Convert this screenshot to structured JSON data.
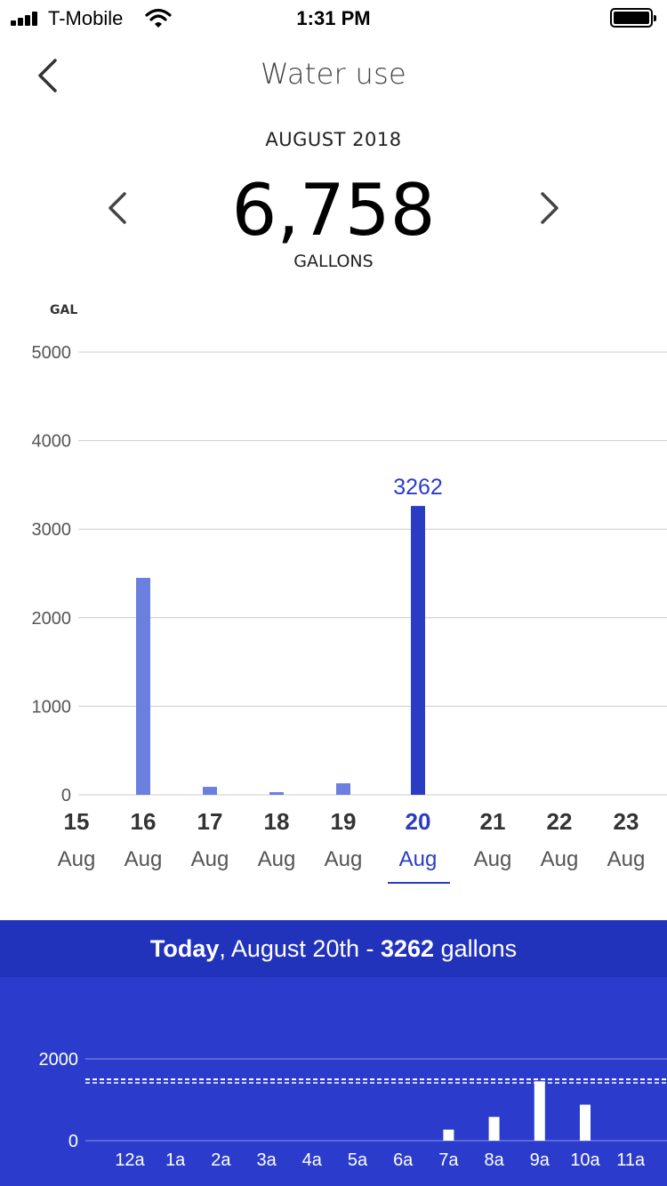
{
  "status_bar": {
    "carrier": "T-Mobile",
    "time": "1:31 PM"
  },
  "header": {
    "title": "Water use",
    "back_icon": "chevron-left-icon"
  },
  "summary": {
    "month": "AUGUST 2018",
    "total": "6,758",
    "unit": "GALLONS",
    "prev_icon": "chevron-left-icon",
    "next_icon": "chevron-right-icon"
  },
  "chart_data": [
    {
      "type": "bar",
      "ylabel": "GAL",
      "ylim": [
        0,
        5000
      ],
      "yticks": [
        "5000",
        "4000",
        "3000",
        "2000",
        "1000",
        "0"
      ],
      "categories": [
        {
          "day": "15",
          "month": "Aug"
        },
        {
          "day": "16",
          "month": "Aug"
        },
        {
          "day": "17",
          "month": "Aug"
        },
        {
          "day": "18",
          "month": "Aug"
        },
        {
          "day": "19",
          "month": "Aug"
        },
        {
          "day": "20",
          "month": "Aug"
        },
        {
          "day": "21",
          "month": "Aug"
        },
        {
          "day": "22",
          "month": "Aug"
        },
        {
          "day": "23",
          "month": "Aug"
        }
      ],
      "values": [
        0,
        2450,
        90,
        30,
        130,
        3262,
        0,
        0,
        0
      ],
      "selected_index": 5,
      "selected_label": "3262",
      "colors": {
        "bar": "#6b7fe0",
        "selected": "#2b3cc4",
        "grid": "#cccccc"
      }
    },
    {
      "type": "bar",
      "ylim": [
        0,
        2000
      ],
      "yticks": [
        "2000",
        "0"
      ],
      "categories": [
        "12a",
        "1a",
        "2a",
        "3a",
        "4a",
        "5a",
        "6a",
        "7a",
        "8a",
        "9a",
        "10a",
        "11a"
      ],
      "values": [
        0,
        0,
        0,
        0,
        0,
        0,
        0,
        270,
        580,
        1450,
        880,
        0
      ],
      "reference_line": 1500,
      "colors": {
        "bar": "#ffffff",
        "background": "#2b3ccc"
      }
    }
  ],
  "today_bar": {
    "prefix_bold": "Today",
    "middle": ", August 20th - ",
    "amount_bold": "3262",
    "suffix": " gallons"
  }
}
